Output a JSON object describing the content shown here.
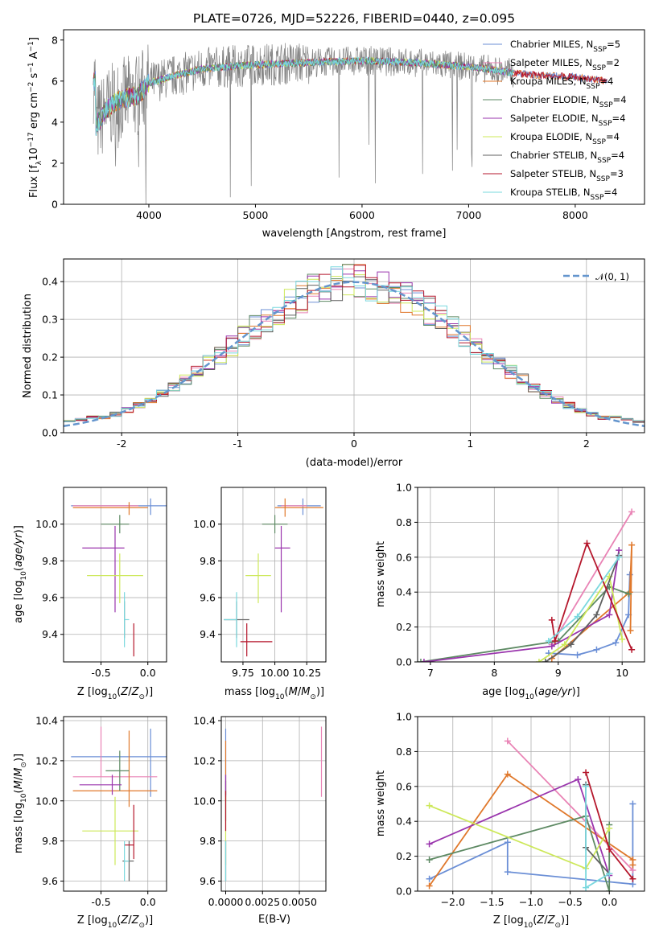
{
  "colors": {
    "chabrier_miles": "#6b8fd6",
    "salpeter_miles": "#e983b5",
    "kroupa_miles": "#e0782b",
    "chabrier_elodie": "#5e8a64",
    "salpeter_elodie": "#9a35ad",
    "kroupa_elodie": "#cde85a",
    "chabrier_stelib": "#606060",
    "salpeter_stelib": "#b5172c",
    "kroupa_stelib": "#7ad8de",
    "normal": "#6495cd"
  },
  "chart_data": [
    {
      "id": "spectrum",
      "type": "line",
      "title": "PLATE=0726, MJD=52226, FIBERID=0440, z=0.095",
      "xlabel": "wavelength [Angstrom, rest frame]",
      "ylabel": "Flux [f",
      "xlim": [
        3200,
        8650
      ],
      "ylim": [
        0,
        8.5
      ],
      "xticks": [
        4000,
        5000,
        6000,
        7000,
        8000
      ],
      "yticks": [
        0,
        2,
        4,
        6,
        8
      ],
      "legend_position": "right",
      "legend": [
        {
          "key": "chabrier_miles",
          "text": "Chabrier MILES, N",
          "sub": "SSP",
          "tail": "=5"
        },
        {
          "key": "salpeter_miles",
          "text": "Salpeter MILES, N",
          "sub": "SSP",
          "tail": "=2"
        },
        {
          "key": "kroupa_miles",
          "text": "Kroupa MILES, N",
          "sub": "SSP",
          "tail": "=4"
        },
        {
          "key": "chabrier_elodie",
          "text": "Chabrier ELODIE, N",
          "sub": "SSP",
          "tail": "=4"
        },
        {
          "key": "salpeter_elodie",
          "text": "Salpeter ELODIE, N",
          "sub": "SSP",
          "tail": "=4"
        },
        {
          "key": "kroupa_elodie",
          "text": "Kroupa ELODIE, N",
          "sub": "SSP",
          "tail": "=4"
        },
        {
          "key": "chabrier_stelib",
          "text": "Chabrier STELIB, N",
          "sub": "SSP",
          "tail": "=4"
        },
        {
          "key": "salpeter_stelib",
          "text": "Salpeter STELIB, N",
          "sub": "SSP",
          "tail": "=3"
        },
        {
          "key": "kroupa_stelib",
          "text": "Kroupa STELIB, N",
          "sub": "SSP",
          "tail": "=4"
        }
      ],
      "series_note": "continuum estimated from curve",
      "continuum": [
        [
          3500,
          3.8
        ],
        [
          3600,
          4.6
        ],
        [
          3700,
          5.0
        ],
        [
          3800,
          5.2
        ],
        [
          3900,
          5.3
        ],
        [
          4000,
          5.9
        ],
        [
          4200,
          6.2
        ],
        [
          4500,
          6.6
        ],
        [
          5000,
          6.8
        ],
        [
          5500,
          6.9
        ],
        [
          6000,
          7.0
        ],
        [
          6500,
          6.9
        ],
        [
          7000,
          6.7
        ],
        [
          7300,
          6.5
        ],
        [
          7400,
          6.4
        ],
        [
          7600,
          6.3
        ],
        [
          8000,
          6.2
        ],
        [
          8300,
          6.0
        ]
      ]
    },
    {
      "id": "residuals",
      "type": "histogram",
      "xlabel": "(data-model)/error",
      "ylabel": "Normed distribution",
      "xlim": [
        -2.5,
        2.5
      ],
      "ylim": [
        0,
        0.46
      ],
      "xticks": [
        -2,
        -1,
        0,
        1,
        2
      ],
      "yticks": [
        0.0,
        0.1,
        0.2,
        0.3,
        0.4
      ],
      "legend_label": "𝒩(0, 1)",
      "legend_position": "top-right",
      "bin_width": 0.1,
      "bin_start": -2.5
    },
    {
      "id": "age_vs_Z",
      "type": "errorbar",
      "xlabel": "Z [log",
      "ylabel": "age  [log",
      "xlim": [
        -0.9,
        0.2
      ],
      "ylim": [
        9.25,
        10.2
      ],
      "xticks": [
        -0.5,
        0.0
      ],
      "yticks": [
        9.4,
        9.6,
        9.8,
        10.0
      ],
      "points": [
        {
          "key": "chabrier_miles",
          "x": 0.03,
          "xerr": [
            0.85,
            0.17
          ],
          "y": 10.1,
          "yerr": [
            0.05,
            0.04
          ]
        },
        {
          "key": "salpeter_miles",
          "x": -0.25,
          "xerr": [
            0.55,
            0.15
          ],
          "y": 10.1,
          "yerr": [
            0.0,
            0.0
          ]
        },
        {
          "key": "kroupa_miles",
          "x": -0.2,
          "xerr": [
            0.6,
            0.2
          ],
          "y": 10.09,
          "yerr": [
            0.04,
            0.03
          ]
        },
        {
          "key": "chabrier_elodie",
          "x": -0.3,
          "xerr": [
            0.2,
            0.1
          ],
          "y": 10.0,
          "yerr": [
            0.05,
            0.05
          ]
        },
        {
          "key": "salpeter_elodie",
          "x": -0.35,
          "xerr": [
            0.35,
            0.1
          ],
          "y": 9.87,
          "yerr": [
            0.35,
            0.12
          ]
        },
        {
          "key": "kroupa_elodie",
          "x": -0.3,
          "xerr": [
            0.35,
            0.25
          ],
          "y": 9.72,
          "yerr": [
            0.15,
            0.12
          ]
        },
        {
          "key": "chabrier_stelib",
          "x": -0.25,
          "xerr": [
            0.0,
            0.0
          ],
          "y": 9.48,
          "yerr": [
            0.1,
            0.1
          ]
        },
        {
          "key": "salpeter_stelib",
          "x": -0.15,
          "xerr": [
            0.0,
            0.0
          ],
          "y": 9.36,
          "yerr": [
            0.08,
            0.1
          ]
        },
        {
          "key": "kroupa_stelib",
          "x": -0.25,
          "xerr": [
            0.0,
            0.05
          ],
          "y": 9.48,
          "yerr": [
            0.15,
            0.15
          ]
        }
      ]
    },
    {
      "id": "age_vs_mass",
      "type": "errorbar",
      "xlabel": "mass [log",
      "ylabel": "",
      "xlim": [
        9.58,
        10.4
      ],
      "ylim": [
        9.25,
        10.2
      ],
      "xticks": [
        9.75,
        10.0,
        10.25
      ],
      "yticks": [
        9.4,
        9.6,
        9.8,
        10.0
      ],
      "tick_labels": [
        "9.75",
        "10.00",
        "10.25"
      ],
      "points": [
        {
          "key": "chabrier_miles",
          "x": 10.22,
          "xerr": [
            0.2,
            0.14
          ],
          "y": 10.1,
          "yerr": [
            0.05,
            0.04
          ]
        },
        {
          "key": "salpeter_miles",
          "x": 10.15,
          "xerr": [
            0.1,
            0.1
          ],
          "y": 10.1,
          "yerr": [
            0.0,
            0.0
          ]
        },
        {
          "key": "kroupa_miles",
          "x": 10.08,
          "xerr": [
            0.08,
            0.3
          ],
          "y": 10.09,
          "yerr": [
            0.05,
            0.05
          ]
        },
        {
          "key": "chabrier_elodie",
          "x": 10.0,
          "xerr": [
            0.1,
            0.1
          ],
          "y": 10.0,
          "yerr": [
            0.05,
            0.05
          ]
        },
        {
          "key": "salpeter_elodie",
          "x": 10.05,
          "xerr": [
            0.05,
            0.07
          ],
          "y": 9.87,
          "yerr": [
            0.35,
            0.12
          ]
        },
        {
          "key": "kroupa_elodie",
          "x": 9.87,
          "xerr": [
            0.1,
            0.1
          ],
          "y": 9.72,
          "yerr": [
            0.15,
            0.12
          ]
        },
        {
          "key": "chabrier_stelib",
          "x": 9.7,
          "xerr": [
            0.1,
            0.1
          ],
          "y": 9.48,
          "yerr": [
            0.1,
            0.1
          ]
        },
        {
          "key": "salpeter_stelib",
          "x": 9.78,
          "xerr": [
            0.05,
            0.2
          ],
          "y": 9.36,
          "yerr": [
            0.08,
            0.1
          ]
        },
        {
          "key": "kroupa_stelib",
          "x": 9.7,
          "xerr": [
            0.1,
            0.0
          ],
          "y": 9.48,
          "yerr": [
            0.15,
            0.15
          ]
        }
      ]
    },
    {
      "id": "weight_vs_age",
      "type": "line",
      "xlabel": "age  [log",
      "ylabel": "mass weight",
      "xlim": [
        6.8,
        10.35
      ],
      "ylim": [
        0,
        1
      ],
      "xticks": [
        7,
        8,
        9,
        10
      ],
      "yticks": [
        0.0,
        0.2,
        0.4,
        0.6,
        0.8,
        1.0
      ],
      "series": [
        {
          "key": "chabrier_miles",
          "x": [
            8.85,
            9.3,
            9.6,
            9.9,
            10.1,
            10.12
          ],
          "y": [
            0.05,
            0.04,
            0.07,
            0.11,
            0.27,
            0.5
          ]
        },
        {
          "key": "salpeter_miles",
          "x": [
            8.9,
            10.15
          ],
          "y": [
            0.1,
            0.86
          ]
        },
        {
          "key": "kroupa_miles",
          "x": [
            8.9,
            10.12,
            10.15,
            10.13
          ],
          "y": [
            0.02,
            0.4,
            0.67,
            0.18
          ]
        },
        {
          "key": "chabrier_elodie",
          "x": [
            6.85,
            9.0,
            9.8,
            10.1
          ],
          "y": [
            0.0,
            0.12,
            0.43,
            0.39
          ]
        },
        {
          "key": "salpeter_elodie",
          "x": [
            6.9,
            8.9,
            9.8,
            9.95
          ],
          "y": [
            0.0,
            0.09,
            0.27,
            0.64
          ]
        },
        {
          "key": "kroupa_elodie",
          "x": [
            8.7,
            9.1,
            9.8,
            10.0
          ],
          "y": [
            0.0,
            0.1,
            0.49,
            0.13
          ]
        },
        {
          "key": "chabrier_stelib",
          "x": [
            8.8,
            9.2,
            9.6,
            9.95
          ],
          "y": [
            0.0,
            0.1,
            0.27,
            0.61
          ]
        },
        {
          "key": "salpeter_stelib",
          "x": [
            8.9,
            8.95,
            9.45,
            10.15
          ],
          "y": [
            0.24,
            0.12,
            0.68,
            0.07
          ]
        },
        {
          "key": "kroupa_stelib",
          "x": [
            8.85,
            9.3,
            9.95
          ],
          "y": [
            0.12,
            0.26,
            0.6
          ]
        }
      ]
    },
    {
      "id": "mass_vs_Z",
      "type": "errorbar",
      "xlabel": "Z [log",
      "ylabel": "mass [log",
      "xlim": [
        -0.9,
        0.2
      ],
      "ylim": [
        9.55,
        10.42
      ],
      "xticks": [
        -0.5,
        0.0
      ],
      "yticks": [
        9.6,
        9.8,
        10.0,
        10.2,
        10.4
      ],
      "points": [
        {
          "key": "chabrier_miles",
          "x": 0.03,
          "xerr": [
            0.85,
            0.17
          ],
          "y": 10.22,
          "yerr": [
            0.2,
            0.14
          ]
        },
        {
          "key": "salpeter_miles",
          "x": -0.5,
          "xerr": [
            0.3,
            0.6
          ],
          "y": 10.12,
          "yerr": [
            0.0,
            0.25
          ]
        },
        {
          "key": "kroupa_miles",
          "x": -0.2,
          "xerr": [
            0.6,
            0.3
          ],
          "y": 10.05,
          "yerr": [
            0.08,
            0.3
          ]
        },
        {
          "key": "chabrier_elodie",
          "x": -0.3,
          "xerr": [
            0.15,
            0.1
          ],
          "y": 10.15,
          "yerr": [
            0.1,
            0.1
          ]
        },
        {
          "key": "salpeter_elodie",
          "x": -0.38,
          "xerr": [
            0.35,
            0.1
          ],
          "y": 10.08,
          "yerr": [
            0.05,
            0.05
          ]
        },
        {
          "key": "kroupa_elodie",
          "x": -0.35,
          "xerr": [
            0.35,
            0.25
          ],
          "y": 9.85,
          "yerr": [
            0.17,
            0.17
          ]
        },
        {
          "key": "chabrier_stelib",
          "x": -0.2,
          "xerr": [
            0.07,
            0.05
          ],
          "y": 9.7,
          "yerr": [
            0.1,
            0.1
          ]
        },
        {
          "key": "salpeter_stelib",
          "x": -0.15,
          "xerr": [
            0.1,
            0.0
          ],
          "y": 9.78,
          "yerr": [
            0.07,
            0.2
          ]
        },
        {
          "key": "kroupa_stelib",
          "x": -0.25,
          "xerr": [
            0.0,
            0.05
          ],
          "y": 9.7,
          "yerr": [
            0.1,
            0.1
          ]
        }
      ]
    },
    {
      "id": "mass_vs_ebv",
      "type": "errorbar",
      "xlabel": "E(B-V)",
      "ylabel": "",
      "xlim": [
        -0.0003,
        0.0068
      ],
      "ylim": [
        9.55,
        10.42
      ],
      "xticks": [
        0.0,
        0.0025,
        0.005
      ],
      "tick_labels": [
        "0.0000",
        "0.0025",
        "0.0050"
      ],
      "yticks": [
        9.6,
        9.8,
        10.0,
        10.2,
        10.4
      ],
      "points": [
        {
          "key": "chabrier_miles",
          "x": 0.0,
          "y": 10.22,
          "yerr": [
            0.2,
            0.14
          ]
        },
        {
          "key": "salpeter_miles",
          "x": 0.0065,
          "y": 10.2,
          "yerr": [
            0.18,
            0.17
          ]
        },
        {
          "key": "kroupa_miles",
          "x": 0.0,
          "y": 10.1,
          "yerr": [
            0.1,
            0.2
          ]
        },
        {
          "key": "chabrier_elodie",
          "x": 0.0,
          "y": 10.0,
          "yerr": [
            0.1,
            0.1
          ]
        },
        {
          "key": "salpeter_elodie",
          "x": 0.0,
          "y": 10.08,
          "yerr": [
            0.05,
            0.05
          ]
        },
        {
          "key": "kroupa_elodie",
          "x": 0.0,
          "y": 9.85,
          "yerr": [
            0.17,
            0.17
          ]
        },
        {
          "key": "chabrier_stelib",
          "x": 0.0,
          "y": 9.7,
          "yerr": [
            0.1,
            0.1
          ]
        },
        {
          "key": "salpeter_stelib",
          "x": 0.0,
          "y": 9.95,
          "yerr": [
            0.1,
            0.1
          ]
        },
        {
          "key": "kroupa_stelib",
          "x": 0.0,
          "y": 9.7,
          "yerr": [
            0.1,
            0.1
          ]
        }
      ]
    },
    {
      "id": "weight_vs_Z",
      "type": "line",
      "xlabel": "Z [log",
      "ylabel": "mass weight",
      "xlim": [
        -2.45,
        0.45
      ],
      "ylim": [
        0,
        1
      ],
      "xticks": [
        -2.0,
        -1.5,
        -1.0,
        -0.5,
        0.0
      ],
      "tick_labels": [
        "−2.0",
        "−1.5",
        "−1.0",
        "−0.5",
        "0.0"
      ],
      "yticks": [
        0.0,
        0.2,
        0.4,
        0.6,
        0.8,
        1.0
      ],
      "series": [
        {
          "key": "chabrier_miles",
          "x": [
            -2.3,
            -1.3,
            -1.3,
            0.3,
            0.3
          ],
          "y": [
            0.07,
            0.28,
            0.11,
            0.04,
            0.5
          ]
        },
        {
          "key": "salpeter_miles",
          "x": [
            -1.3,
            0.3
          ],
          "y": [
            0.86,
            0.12
          ]
        },
        {
          "key": "kroupa_miles",
          "x": [
            -2.3,
            -1.3,
            0.3,
            0.3
          ],
          "y": [
            0.03,
            0.67,
            0.18,
            0.15
          ]
        },
        {
          "key": "chabrier_elodie",
          "x": [
            -2.3,
            -0.3,
            0.0,
            0.0
          ],
          "y": [
            0.18,
            0.43,
            0.0,
            0.38
          ]
        },
        {
          "key": "salpeter_elodie",
          "x": [
            -2.3,
            -0.4,
            0.0
          ],
          "y": [
            0.27,
            0.64,
            0.09
          ]
        },
        {
          "key": "kroupa_elodie",
          "x": [
            -2.3,
            -0.3,
            0.0
          ],
          "y": [
            0.49,
            0.13,
            0.36
          ]
        },
        {
          "key": "chabrier_stelib",
          "x": [
            -0.3,
            -0.3,
            0.0
          ],
          "y": [
            0.61,
            0.25,
            0.1
          ]
        },
        {
          "key": "salpeter_stelib",
          "x": [
            -0.3,
            0.0,
            0.3
          ],
          "y": [
            0.68,
            0.24,
            0.07
          ]
        },
        {
          "key": "kroupa_stelib",
          "x": [
            -0.3,
            -0.3,
            0.0
          ],
          "y": [
            0.6,
            0.02,
            0.1
          ]
        }
      ]
    }
  ]
}
